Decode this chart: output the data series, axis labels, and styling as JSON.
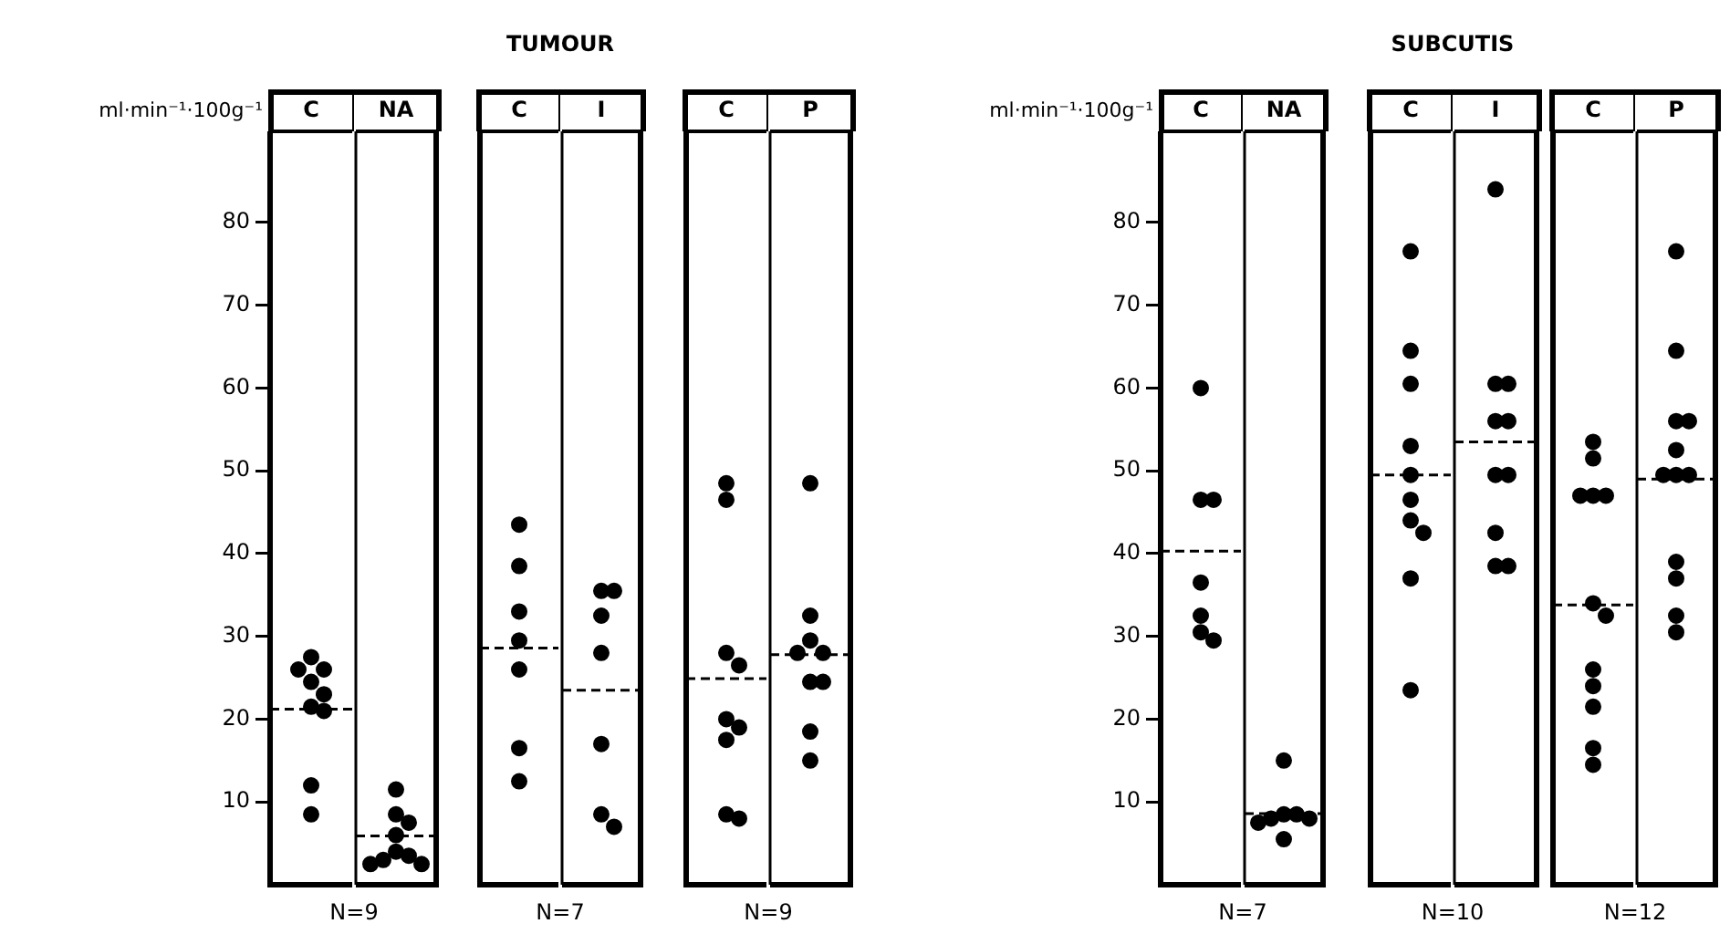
{
  "chart_data": [
    {
      "type": "scatter",
      "ylabel": "ml·min⁻¹·100g⁻¹",
      "annotations": [
        "N=9"
      ],
      "categories": [
        "C"
      ],
      "ylim": [
        0,
        91
      ],
      "yticks": [
        10,
        20,
        30,
        40,
        50,
        60,
        70,
        80
      ],
      "ref_lines": [
        {
          "axis": "y",
          "value": 21.2,
          "line_style": "dashed",
          "color": "#000000"
        }
      ],
      "series": [
        {
          "color": "#000000",
          "marker": "circle",
          "x": [
            "C",
            "C",
            "C",
            "C",
            "C",
            "C",
            "C",
            "C",
            "C"
          ],
          "values": [
            27.5,
            26,
            26,
            24.5,
            23,
            21.5,
            21,
            12,
            8.5
          ]
        }
      ]
    },
    {
      "type": "scatter",
      "tick_labels": "x",
      "categories": [
        "NA"
      ],
      "ylim": [
        0,
        91
      ],
      "yticks": [
        10,
        20,
        30,
        40,
        50,
        60,
        70,
        80
      ],
      "ref_lines": [
        {
          "axis": "y",
          "value": 5.9,
          "line_style": "dashed",
          "color": "#000000"
        }
      ],
      "series": [
        {
          "color": "#000000",
          "marker": "circle",
          "x": [
            "NA",
            "NA",
            "NA",
            "NA",
            "NA",
            "NA",
            "NA",
            "NA",
            "NA"
          ],
          "values": [
            11.5,
            8.5,
            7.5,
            6,
            4,
            3.5,
            3,
            2.5,
            2.5
          ]
        }
      ]
    },
    {
      "type": "scatter",
      "title": "TUMOUR",
      "annotations": [
        "N=7"
      ],
      "tick_labels": "x",
      "categories": [
        "C"
      ],
      "ylim": [
        0,
        91
      ],
      "yticks": [
        10,
        20,
        30,
        40,
        50,
        60,
        70,
        80
      ],
      "ref_lines": [
        {
          "axis": "y",
          "value": 28.6,
          "line_style": "dashed",
          "color": "#000000"
        }
      ],
      "series": [
        {
          "color": "#000000",
          "marker": "circle",
          "x": [
            "C",
            "C",
            "C",
            "C",
            "C",
            "C",
            "C"
          ],
          "values": [
            43.5,
            38.5,
            33,
            29.5,
            26,
            16.5,
            12.5
          ]
        }
      ]
    },
    {
      "type": "scatter",
      "tick_labels": "x",
      "categories": [
        "I"
      ],
      "ylim": [
        0,
        91
      ],
      "yticks": [
        10,
        20,
        30,
        40,
        50,
        60,
        70,
        80
      ],
      "ref_lines": [
        {
          "axis": "y",
          "value": 23.5,
          "line_style": "dashed",
          "color": "#000000"
        }
      ],
      "series": [
        {
          "color": "#000000",
          "marker": "circle",
          "x": [
            "I",
            "I",
            "I",
            "I",
            "I",
            "I",
            "I"
          ],
          "values": [
            35.5,
            35.5,
            32.5,
            28,
            17,
            8.5,
            7
          ]
        }
      ]
    },
    {
      "type": "scatter",
      "annotations": [
        "N=9"
      ],
      "tick_labels": "x",
      "categories": [
        "C"
      ],
      "ylim": [
        0,
        91
      ],
      "yticks": [
        10,
        20,
        30,
        40,
        50,
        60,
        70,
        80
      ],
      "ref_lines": [
        {
          "axis": "y",
          "value": 24.9,
          "line_style": "dashed",
          "color": "#000000"
        }
      ],
      "series": [
        {
          "color": "#000000",
          "marker": "circle",
          "x": [
            "C",
            "C",
            "C",
            "C",
            "C",
            "C",
            "C",
            "C",
            "C"
          ],
          "values": [
            48.5,
            46.5,
            28,
            26.5,
            20,
            19,
            17.5,
            8.5,
            8
          ]
        }
      ]
    },
    {
      "type": "scatter",
      "tick_labels": "x",
      "categories": [
        "P"
      ],
      "ylim": [
        0,
        91
      ],
      "yticks": [
        10,
        20,
        30,
        40,
        50,
        60,
        70,
        80
      ],
      "ref_lines": [
        {
          "axis": "y",
          "value": 27.8,
          "line_style": "dashed",
          "color": "#000000"
        }
      ],
      "series": [
        {
          "color": "#000000",
          "marker": "circle",
          "x": [
            "P",
            "P",
            "P",
            "P",
            "P",
            "P",
            "P",
            "P",
            "P"
          ],
          "values": [
            48.5,
            32.5,
            29.5,
            28,
            28,
            24.5,
            24.5,
            18.5,
            15
          ]
        }
      ]
    },
    {
      "type": "scatter",
      "ylabel": "ml·min⁻¹·100g⁻¹",
      "annotations": [
        "N=7"
      ],
      "categories": [
        "C"
      ],
      "ylim": [
        0,
        91
      ],
      "yticks": [
        10,
        20,
        30,
        40,
        50,
        60,
        70,
        80
      ],
      "ref_lines": [
        {
          "axis": "y",
          "value": 40.3,
          "line_style": "dashed",
          "color": "#000000"
        }
      ],
      "series": [
        {
          "color": "#000000",
          "marker": "circle",
          "x": [
            "C",
            "C",
            "C",
            "C",
            "C",
            "C",
            "C"
          ],
          "values": [
            60,
            46.5,
            46.5,
            36.5,
            32.5,
            30.5,
            29.5
          ]
        }
      ]
    },
    {
      "type": "scatter",
      "tick_labels": "x",
      "categories": [
        "NA"
      ],
      "ylim": [
        0,
        91
      ],
      "yticks": [
        10,
        20,
        30,
        40,
        50,
        60,
        70,
        80
      ],
      "ref_lines": [
        {
          "axis": "y",
          "value": 8.6,
          "line_style": "dashed",
          "color": "#000000"
        }
      ],
      "series": [
        {
          "color": "#000000",
          "marker": "circle",
          "x": [
            "NA",
            "NA",
            "NA",
            "NA",
            "NA",
            "NA",
            "NA"
          ],
          "values": [
            15,
            8.5,
            8.5,
            8,
            8,
            7.5,
            5.5
          ]
        }
      ]
    },
    {
      "type": "scatter",
      "title": "SUBCUTIS",
      "annotations": [
        "N=10"
      ],
      "tick_labels": "x",
      "categories": [
        "C"
      ],
      "ylim": [
        0,
        91
      ],
      "yticks": [
        10,
        20,
        30,
        40,
        50,
        60,
        70,
        80
      ],
      "ref_lines": [
        {
          "axis": "y",
          "value": 49.5,
          "line_style": "dashed",
          "color": "#000000"
        }
      ],
      "series": [
        {
          "color": "#000000",
          "marker": "circle",
          "x": [
            "C",
            "C",
            "C",
            "C",
            "C",
            "C",
            "C",
            "C",
            "C",
            "C"
          ],
          "values": [
            76.5,
            64.5,
            60.5,
            53,
            49.5,
            46.5,
            44,
            42.5,
            37,
            23.5
          ]
        }
      ]
    },
    {
      "type": "scatter",
      "tick_labels": "x",
      "categories": [
        "I"
      ],
      "ylim": [
        0,
        91
      ],
      "yticks": [
        10,
        20,
        30,
        40,
        50,
        60,
        70,
        80
      ],
      "ref_lines": [
        {
          "axis": "y",
          "value": 53.5,
          "line_style": "dashed",
          "color": "#000000"
        }
      ],
      "series": [
        {
          "color": "#000000",
          "marker": "circle",
          "x": [
            "I",
            "I",
            "I",
            "I",
            "I",
            "I",
            "I",
            "I",
            "I",
            "I"
          ],
          "values": [
            84,
            60.5,
            60.5,
            56,
            56,
            49.5,
            49.5,
            42.5,
            38.5,
            38.5
          ]
        }
      ]
    },
    {
      "type": "scatter",
      "annotations": [
        "N=12"
      ],
      "tick_labels": "x",
      "categories": [
        "C"
      ],
      "ylim": [
        0,
        91
      ],
      "yticks": [
        10,
        20,
        30,
        40,
        50,
        60,
        70,
        80
      ],
      "ref_lines": [
        {
          "axis": "y",
          "value": 33.8,
          "line_style": "dashed",
          "color": "#000000"
        }
      ],
      "series": [
        {
          "color": "#000000",
          "marker": "circle",
          "x": [
            "C",
            "C",
            "C",
            "C",
            "C",
            "C",
            "C",
            "C",
            "C",
            "C",
            "C",
            "C"
          ],
          "values": [
            53.5,
            51.5,
            47,
            47,
            47,
            34,
            32.5,
            26,
            24,
            21.5,
            16.5,
            14.5
          ]
        }
      ]
    },
    {
      "type": "scatter",
      "tick_labels": "x",
      "categories": [
        "P"
      ],
      "ylim": [
        0,
        91
      ],
      "yticks": [
        10,
        20,
        30,
        40,
        50,
        60,
        70,
        80
      ],
      "ref_lines": [
        {
          "axis": "y",
          "value": 49,
          "line_style": "dashed",
          "color": "#000000"
        }
      ],
      "series": [
        {
          "color": "#000000",
          "marker": "circle",
          "x": [
            "P",
            "P",
            "P",
            "P",
            "P",
            "P",
            "P",
            "P",
            "P",
            "P",
            "P",
            "P"
          ],
          "values": [
            76.5,
            64.5,
            56,
            56,
            52.5,
            49.5,
            49.5,
            49.5,
            39,
            37,
            32.5,
            30.5
          ]
        }
      ]
    }
  ]
}
